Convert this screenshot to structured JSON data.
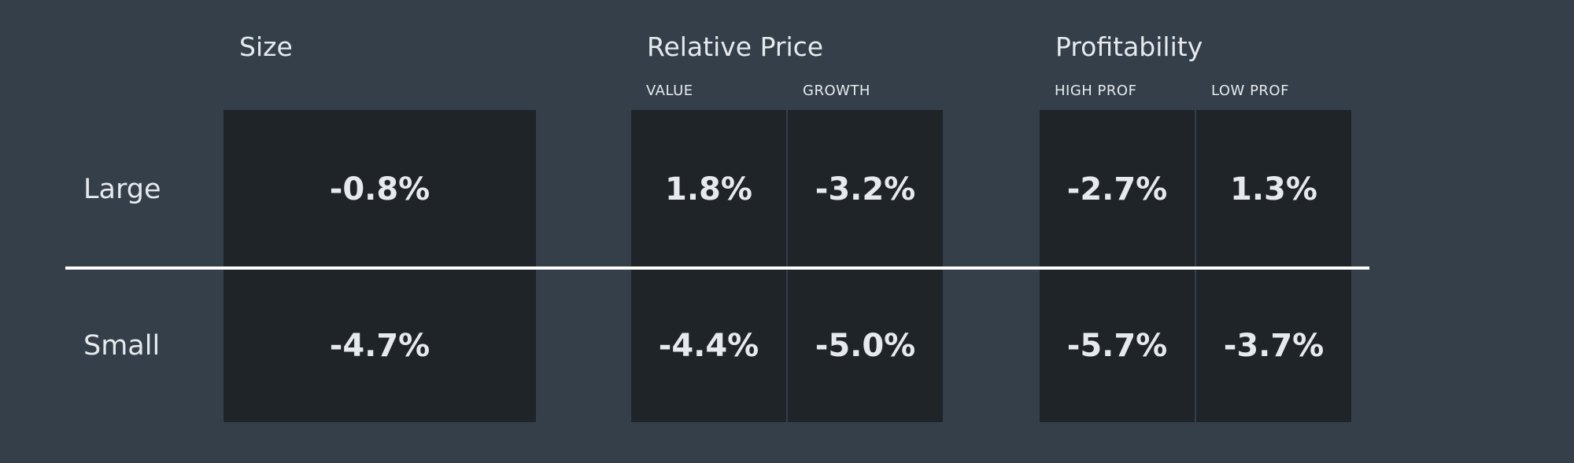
{
  "rows": [
    "Large",
    "Small"
  ],
  "groups": [
    {
      "title": "Size",
      "columns": [
        {
          "values": [
            "-0.8%",
            "-4.7%"
          ]
        }
      ]
    },
    {
      "title": "Relative Price",
      "columns": [
        {
          "label": "VALUE",
          "values": [
            "1.8%",
            "-4.4%"
          ]
        },
        {
          "label": "GROWTH",
          "values": [
            "-3.2%",
            "-5.0%"
          ]
        }
      ]
    },
    {
      "title": "Profitability",
      "columns": [
        {
          "label": "HIGH PROF",
          "values": [
            "-2.7%",
            "-5.7%"
          ]
        },
        {
          "label": "LOW PROF",
          "values": [
            "1.3%",
            "-3.7%"
          ]
        }
      ]
    }
  ]
}
